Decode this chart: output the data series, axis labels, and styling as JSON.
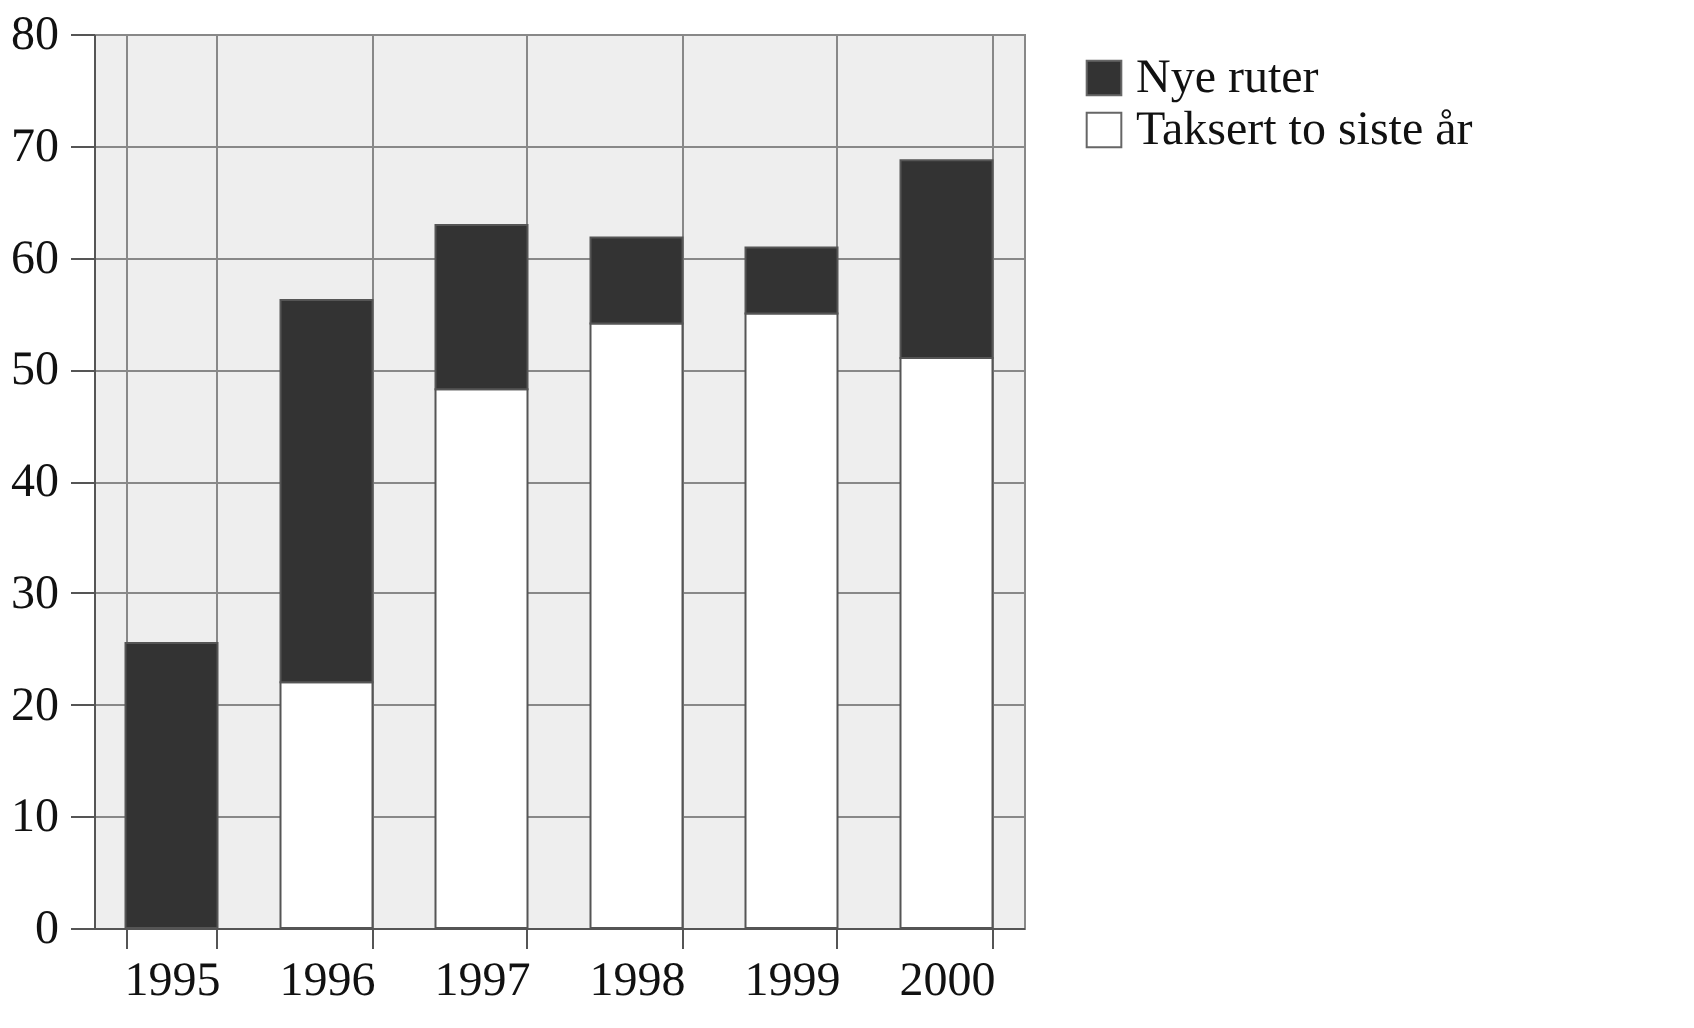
{
  "chart_data": {
    "type": "bar",
    "stacked": true,
    "categories": [
      "1995",
      "1996",
      "1997",
      "1998",
      "1999",
      "2000"
    ],
    "series": [
      {
        "name": "Taksert to siste år",
        "color": "#ffffff",
        "values": [
          0,
          22.0,
          48.2,
          54.1,
          55.0,
          51.0
        ]
      },
      {
        "name": "Nye ruter",
        "color": "#333333",
        "values": [
          25.5,
          34.2,
          14.7,
          7.7,
          5.9,
          17.7
        ]
      }
    ],
    "ylim": [
      0,
      80
    ],
    "yticks": [
      0,
      10,
      20,
      30,
      40,
      50,
      60,
      70,
      80
    ],
    "grid": true,
    "legend": "right"
  }
}
